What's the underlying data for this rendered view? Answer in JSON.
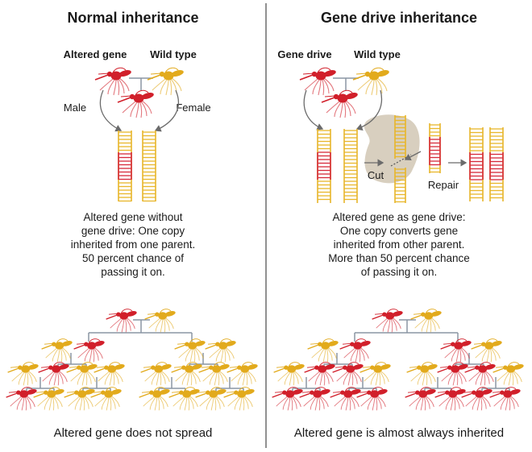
{
  "colors": {
    "altered": "#d11f2a",
    "wild": "#e2aa1c",
    "rung_wild": "#e8b62a",
    "rung_altered": "#d6283a",
    "connector": "#8a96a3",
    "arrow": "#6b6b6b",
    "enzyme": "#d8cfbf",
    "divider": "#555555"
  },
  "left": {
    "title": "Normal inheritance",
    "parent_labels": [
      "Altered gene",
      "Wild type"
    ],
    "side_labels": [
      "Male",
      "Female"
    ],
    "description": [
      "Altered gene without",
      "gene drive: One copy",
      "inherited from one parent.",
      "50 percent chance of",
      "passing it on."
    ],
    "caption": "Altered gene does not spread",
    "tree": [
      [
        "altered",
        "wild"
      ],
      [
        "wild",
        "altered",
        "wild",
        "wild"
      ],
      [
        "wild",
        "altered",
        "wild",
        "wild",
        "wild",
        "wild",
        "wild",
        "wild"
      ],
      [
        "altered",
        "wild",
        "wild",
        "wild",
        "wild",
        "wild",
        "wild",
        "wild"
      ]
    ]
  },
  "right": {
    "title": "Gene drive inheritance",
    "parent_labels": [
      "Gene drive",
      "Wild type"
    ],
    "step_labels": [
      "Cut",
      "Repair"
    ],
    "description": [
      "Altered gene as gene drive:",
      "One copy converts gene",
      "inherited from other parent.",
      "More than 50 percent chance",
      "of passing it on."
    ],
    "caption": "Altered gene is almost always inherited",
    "tree": [
      [
        "altered",
        "wild"
      ],
      [
        "wild",
        "altered",
        "altered",
        "wild"
      ],
      [
        "wild",
        "altered",
        "altered",
        "wild",
        "wild",
        "altered",
        "altered",
        "wild"
      ],
      [
        "altered",
        "altered",
        "altered",
        "altered",
        "altered",
        "altered",
        "altered",
        "altered"
      ]
    ]
  }
}
